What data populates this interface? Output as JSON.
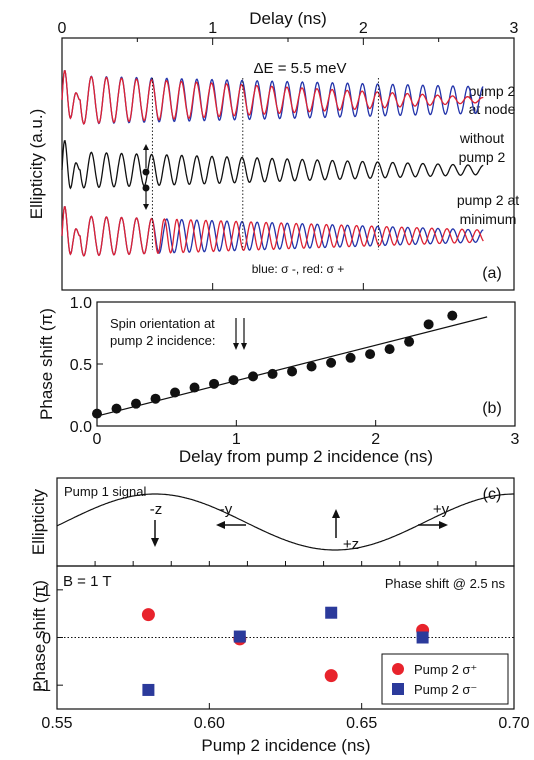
{
  "chart_data": [
    {
      "type": "line",
      "panel_label": "(a)",
      "xlabel_top": "Delay (ns)",
      "ylabel": "Ellipticity (a.u.)",
      "xlim": [
        0,
        3
      ],
      "x_ticks": [
        0,
        1,
        2,
        3
      ],
      "annotations": {
        "delta_e": "ΔE = 5.5 meV",
        "legend_note": "blue: σ -, red: σ +",
        "label_top": [
          "pump 2",
          "at node"
        ],
        "label_mid": [
          "without",
          "pump 2"
        ],
        "label_bot": [
          "pump 2 at",
          "minimum"
        ]
      },
      "dotted_markers_ns": [
        0.6,
        1.2,
        2.1
      ],
      "series": [
        {
          "group": "pump 2 at node",
          "color": "#2233aa",
          "description_values": {
            "period_ns": 0.1,
            "amplitude_start": 1.0,
            "amplitude_end": 0.55
          }
        },
        {
          "group": "pump 2 at node",
          "color": "#dd2233",
          "description_values": {
            "period_ns": 0.1,
            "amplitude_start": 1.0,
            "amplitude_end": 0.1
          }
        },
        {
          "group": "without pump 2",
          "color": "#111111",
          "description_values": {
            "period_ns": 0.1,
            "amplitude_start": 1.0,
            "amplitude_end": 0.25
          }
        },
        {
          "group": "pump 2 at minimum",
          "color": "#2233aa",
          "description_values": {
            "period_ns": 0.1,
            "amplitude_start": 1.0,
            "amplitude_end": 0.3
          }
        },
        {
          "group": "pump 2 at minimum",
          "color": "#dd2233",
          "description_values": {
            "period_ns": 0.1,
            "amplitude_start": 1.0,
            "amplitude_end": 0.3
          }
        }
      ]
    },
    {
      "type": "scatter",
      "panel_label": "(b)",
      "xlabel": "Delay from pump 2 incidence (ns)",
      "ylabel": "Phase shift (π)",
      "xlim": [
        0,
        3
      ],
      "ylim": [
        0,
        1.0
      ],
      "x_ticks": [
        0,
        1,
        2,
        3
      ],
      "y_ticks": [
        "0.0",
        "0.5",
        "1.0"
      ],
      "annotation": [
        "Spin orientation at",
        "pump 2 incidence:"
      ],
      "x": [
        0,
        0.14,
        0.28,
        0.42,
        0.56,
        0.7,
        0.84,
        0.98,
        1.12,
        1.26,
        1.4,
        1.54,
        1.68,
        1.82,
        1.96,
        2.1,
        2.24,
        2.38,
        2.55
      ],
      "y": [
        0.1,
        0.14,
        0.18,
        0.22,
        0.27,
        0.31,
        0.34,
        0.37,
        0.4,
        0.42,
        0.44,
        0.48,
        0.51,
        0.55,
        0.58,
        0.62,
        0.68,
        0.82,
        0.89
      ],
      "fit_line": {
        "x": [
          0,
          2.8
        ],
        "y": [
          0.08,
          0.88
        ]
      }
    },
    {
      "type": "line",
      "panel_label": "(c)",
      "ylabel": "Ellipticity",
      "signal_label": "Pump 1 signal",
      "spin_labels": [
        "-z",
        "-y",
        "+z",
        "+y"
      ]
    },
    {
      "type": "scatter",
      "ylabel": "Phase shift (π)",
      "xlabel": "Pump 2 incidence (ns)",
      "field_label": "B = 1 T",
      "title": "Phase shift @ 2.5 ns",
      "xlim": [
        0.55,
        0.7
      ],
      "ylim": [
        -1.5,
        1.5
      ],
      "x_ticks": [
        "0.55",
        "0.60",
        "0.65",
        "0.70"
      ],
      "y_ticks": [
        "-1",
        "0",
        "1"
      ],
      "series": [
        {
          "name": "Pump 2 σ⁺",
          "color": "#e8232c",
          "marker": "circle",
          "x": [
            0.58,
            0.61,
            0.64,
            0.67
          ],
          "y": [
            0.48,
            -0.03,
            -0.8,
            0.15
          ]
        },
        {
          "name": "Pump 2 σ⁻",
          "color": "#2b3a9b",
          "marker": "square",
          "x": [
            0.58,
            0.61,
            0.64,
            0.67
          ],
          "y": [
            -1.1,
            0.02,
            0.52,
            0.0
          ]
        }
      ]
    }
  ]
}
